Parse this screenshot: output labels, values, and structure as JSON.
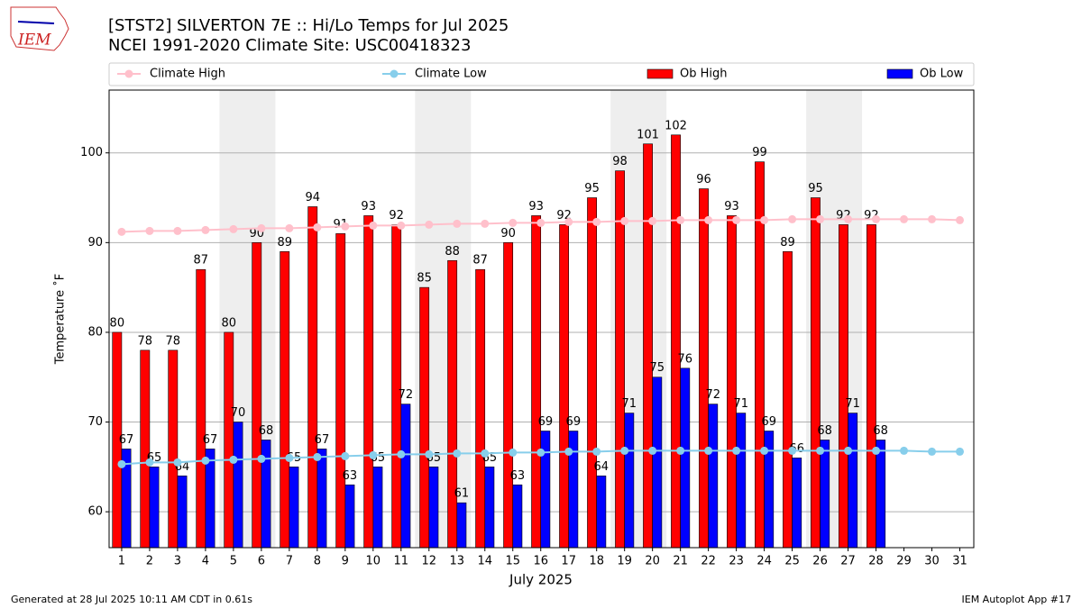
{
  "logo_text": "IEM",
  "footer_left": "Generated at 28 Jul 2025 10:11 AM CDT in 0.61s",
  "footer_right": "IEM Autoplot App #17",
  "chart_data": {
    "type": "bar",
    "title": "[STST2] SILVERTON 7E :: Hi/Lo Temps for Jul 2025",
    "subtitle": "NCEI 1991-2020 Climate Site: USC00418323",
    "x_label": "July 2025",
    "y_label": "Temperature ˚F",
    "x": [
      1,
      2,
      3,
      4,
      5,
      6,
      7,
      8,
      9,
      10,
      11,
      12,
      13,
      14,
      15,
      16,
      17,
      18,
      19,
      20,
      21,
      22,
      23,
      24,
      25,
      26,
      27,
      28,
      29,
      30,
      31
    ],
    "xlim": [
      0.55,
      31.5
    ],
    "xticks": [
      1,
      2,
      3,
      4,
      5,
      6,
      7,
      8,
      9,
      10,
      11,
      12,
      13,
      14,
      15,
      16,
      17,
      18,
      19,
      20,
      21,
      22,
      23,
      24,
      25,
      26,
      27,
      28,
      29,
      30,
      31
    ],
    "ylim": [
      56,
      107
    ],
    "yticks": [
      60,
      70,
      80,
      90,
      100
    ],
    "grid": true,
    "shaded_days": [
      [
        5,
        6
      ],
      [
        12,
        13
      ],
      [
        19,
        20
      ],
      [
        26,
        27
      ]
    ],
    "shade_color": "#eeeeee",
    "series": [
      {
        "name": "Climate High",
        "type": "line",
        "color": "#ffc0cb",
        "values": [
          91.2,
          91.3,
          91.3,
          91.4,
          91.5,
          91.6,
          91.6,
          91.7,
          91.8,
          91.9,
          91.9,
          92.0,
          92.1,
          92.1,
          92.2,
          92.2,
          92.3,
          92.3,
          92.4,
          92.4,
          92.5,
          92.5,
          92.5,
          92.5,
          92.6,
          92.6,
          92.6,
          92.6,
          92.6,
          92.6,
          92.5
        ]
      },
      {
        "name": "Climate Low",
        "type": "line",
        "color": "#87ceeb",
        "values": [
          65.3,
          65.5,
          65.5,
          65.7,
          65.8,
          65.9,
          66.0,
          66.1,
          66.2,
          66.3,
          66.4,
          66.4,
          66.5,
          66.5,
          66.6,
          66.6,
          66.7,
          66.7,
          66.8,
          66.8,
          66.8,
          66.8,
          66.8,
          66.8,
          66.8,
          66.8,
          66.8,
          66.8,
          66.8,
          66.7,
          66.7
        ]
      },
      {
        "name": "Ob High",
        "type": "bar",
        "color": "#ff0000",
        "values": [
          80,
          78,
          78,
          87,
          80,
          90,
          89,
          94,
          91,
          93,
          92,
          85,
          88,
          87,
          90,
          93,
          92,
          95,
          98,
          101,
          102,
          96,
          93,
          99,
          89,
          95,
          92,
          92,
          null,
          null,
          null
        ]
      },
      {
        "name": "Ob Low",
        "type": "bar",
        "color": "#0000ff",
        "values": [
          67,
          65,
          64,
          67,
          70,
          68,
          65,
          67,
          63,
          65,
          72,
          65,
          61,
          65,
          63,
          69,
          69,
          64,
          71,
          75,
          76,
          72,
          71,
          69,
          66,
          68,
          71,
          68,
          null,
          null,
          null
        ]
      }
    ]
  }
}
